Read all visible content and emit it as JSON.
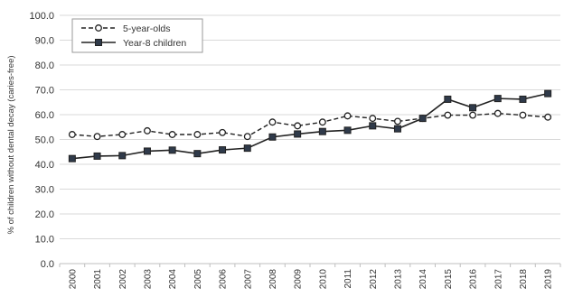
{
  "chart_data": {
    "type": "line",
    "categories": [
      "2000",
      "2001",
      "2002",
      "2003",
      "2004",
      "2005",
      "2006",
      "2007",
      "2008",
      "2009",
      "2010",
      "2011",
      "2012",
      "2013",
      "2014",
      "2015",
      "2016",
      "2017",
      "2018",
      "2019"
    ],
    "ylabel": "% of children without dental decay (caries-free)",
    "ylim": [
      0,
      100
    ],
    "yticks": [
      "0.0",
      "10.0",
      "20.0",
      "30.0",
      "40.0",
      "50.0",
      "60.0",
      "70.0",
      "80.0",
      "90.0",
      "100.0"
    ],
    "grid": true,
    "legend_position": "top-left",
    "series": [
      {
        "name": "5-year-olds",
        "style": "dashed-open-circle",
        "color": "#222222",
        "values": [
          52.0,
          51.2,
          52.0,
          53.5,
          52.0,
          52.0,
          52.8,
          51.2,
          57.0,
          55.5,
          57.0,
          59.5,
          58.5,
          57.3,
          58.5,
          59.8,
          59.8,
          60.5,
          59.8,
          59.0
        ]
      },
      {
        "name": "Year-8 children",
        "style": "solid-filled-square",
        "color": "#222222",
        "values": [
          42.3,
          43.3,
          43.5,
          45.3,
          45.7,
          44.3,
          45.8,
          46.5,
          51.0,
          52.2,
          53.2,
          53.7,
          55.5,
          54.3,
          58.5,
          66.2,
          62.8,
          66.5,
          66.2,
          68.5
        ]
      }
    ]
  }
}
